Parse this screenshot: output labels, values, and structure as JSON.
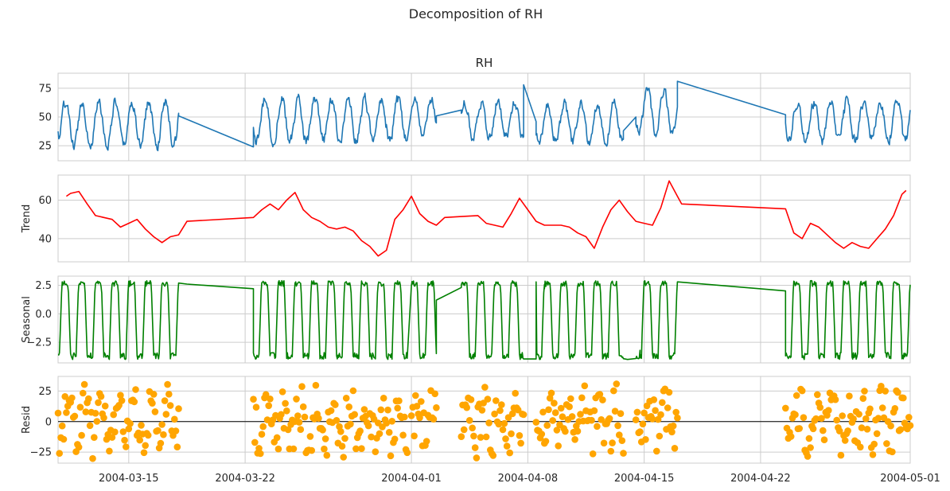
{
  "chart_data": {
    "type": "line",
    "title": "Decomposition of RH",
    "x_axis": {
      "type": "date",
      "range": [
        "2004-03-10T18:00",
        "2004-05-01T00:00"
      ],
      "ticks": [
        "2004-03-15",
        "2004-03-22",
        "2004-04-01",
        "2004-04-08",
        "2004-04-15",
        "2004-04-22",
        "2004-05-01"
      ],
      "grid": true
    },
    "gap": [
      "2004-03-18T12:00",
      "2004-03-22T00:00"
    ],
    "panels": [
      {
        "id": "observed",
        "title": "RH",
        "ylabel": "",
        "color": "#1f77b4",
        "plot": "line",
        "ylim": [
          12,
          88
        ],
        "yticks": [
          25,
          50,
          75
        ],
        "ytick_labels": [
          "25",
          "50",
          "75"
        ],
        "segments": [
          {
            "start": "2004-03-10T18:00",
            "end": "2004-03-18T00:00",
            "baseline": 44,
            "amplitude": 20,
            "noise": 7,
            "start_value": 48
          },
          {
            "start": "2004-03-22T12:00",
            "end": "2004-03-31T18:00",
            "baseline": 47,
            "amplitude": 19,
            "noise": 8,
            "start_value": 45
          },
          {
            "start": "2004-04-01T00:00",
            "end": "2004-04-02T12:00",
            "baseline": 50,
            "amplitude": 16,
            "noise": 6,
            "start_value": 52
          },
          {
            "start": "2004-04-04T00:00",
            "end": "2004-04-07T18:00",
            "baseline": 48,
            "amplitude": 16,
            "noise": 7,
            "start_value": 55
          },
          {
            "start": "2004-04-08T12:00",
            "end": "2004-04-13T18:00",
            "baseline": 45,
            "amplitude": 18,
            "noise": 7,
            "start_value": 40
          },
          {
            "start": "2004-04-14T12:00",
            "end": "2004-04-17T00:00",
            "baseline": 55,
            "amplitude": 20,
            "noise": 7,
            "start_value": 38
          },
          {
            "start": "2004-04-23T12:00",
            "end": "2004-05-01T00:00",
            "baseline": 46,
            "amplitude": 18,
            "noise": 8,
            "start_value": 52
          }
        ],
        "bridges": [
          {
            "from": "2004-03-18T00:00",
            "to": "2004-03-22T12:00",
            "from_value": 51,
            "to_value": 24
          },
          {
            "from": "2004-04-02T12:00",
            "to": "2004-04-04T00:00",
            "from_value": 51,
            "to_value": 56
          },
          {
            "from": "2004-04-07T18:00",
            "to": "2004-04-08T12:00",
            "from_value": 78,
            "to_value": 46
          },
          {
            "from": "2004-04-13T18:00",
            "to": "2004-04-14T12:00",
            "from_value": 38,
            "to_value": 50
          },
          {
            "from": "2004-04-17T00:00",
            "to": "2004-04-23T12:00",
            "from_value": 81,
            "to_value": 52
          }
        ]
      },
      {
        "id": "trend",
        "title": "",
        "ylabel": "Trend",
        "color": "#ff0000",
        "plot": "line",
        "ylim": [
          28,
          73
        ],
        "yticks": [
          40,
          60
        ],
        "ytick_labels": [
          "40",
          "60"
        ],
        "points": [
          [
            "2004-03-11T06:00",
            62
          ],
          [
            "2004-03-11T12:00",
            63.5
          ],
          [
            "2004-03-12T00:00",
            64.5
          ],
          [
            "2004-03-12T12:00",
            58
          ],
          [
            "2004-03-13T00:00",
            52
          ],
          [
            "2004-03-13T12:00",
            51
          ],
          [
            "2004-03-14T00:00",
            50
          ],
          [
            "2004-03-14T12:00",
            46
          ],
          [
            "2004-03-15T00:00",
            48
          ],
          [
            "2004-03-15T12:00",
            50
          ],
          [
            "2004-03-16T00:00",
            45
          ],
          [
            "2004-03-16T12:00",
            41
          ],
          [
            "2004-03-17T00:00",
            38
          ],
          [
            "2004-03-17T12:00",
            41
          ],
          [
            "2004-03-18T00:00",
            42
          ],
          [
            "2004-03-18T12:00",
            49
          ],
          [
            "2004-03-22T12:00",
            51
          ],
          [
            "2004-03-23T00:00",
            55
          ],
          [
            "2004-03-23T12:00",
            58
          ],
          [
            "2004-03-24T00:00",
            55
          ],
          [
            "2004-03-24T12:00",
            60
          ],
          [
            "2004-03-25T00:00",
            64
          ],
          [
            "2004-03-25T12:00",
            55
          ],
          [
            "2004-03-26T00:00",
            51
          ],
          [
            "2004-03-26T12:00",
            49
          ],
          [
            "2004-03-27T00:00",
            46
          ],
          [
            "2004-03-27T12:00",
            45
          ],
          [
            "2004-03-28T00:00",
            46
          ],
          [
            "2004-03-28T12:00",
            44
          ],
          [
            "2004-03-29T00:00",
            39
          ],
          [
            "2004-03-29T12:00",
            36
          ],
          [
            "2004-03-30T00:00",
            31
          ],
          [
            "2004-03-30T12:00",
            34
          ],
          [
            "2004-03-31T00:00",
            50
          ],
          [
            "2004-03-31T12:00",
            55
          ],
          [
            "2004-04-01T00:00",
            62
          ],
          [
            "2004-04-01T12:00",
            53
          ],
          [
            "2004-04-02T00:00",
            49
          ],
          [
            "2004-04-02T12:00",
            47
          ],
          [
            "2004-04-03T00:00",
            51
          ],
          [
            "2004-04-04T00:00",
            51.5
          ],
          [
            "2004-04-05T00:00",
            52
          ],
          [
            "2004-04-05T12:00",
            48
          ],
          [
            "2004-04-06T00:00",
            47
          ],
          [
            "2004-04-06T12:00",
            46
          ],
          [
            "2004-04-07T00:00",
            53
          ],
          [
            "2004-04-07T12:00",
            61
          ],
          [
            "2004-04-08T00:00",
            55
          ],
          [
            "2004-04-08T12:00",
            49
          ],
          [
            "2004-04-09T00:00",
            47
          ],
          [
            "2004-04-10T00:00",
            47
          ],
          [
            "2004-04-10T12:00",
            46
          ],
          [
            "2004-04-11T00:00",
            43
          ],
          [
            "2004-04-11T12:00",
            41
          ],
          [
            "2004-04-12T00:00",
            35
          ],
          [
            "2004-04-12T12:00",
            46
          ],
          [
            "2004-04-13T00:00",
            55
          ],
          [
            "2004-04-13T12:00",
            60
          ],
          [
            "2004-04-14T00:00",
            54
          ],
          [
            "2004-04-14T12:00",
            49
          ],
          [
            "2004-04-15T00:00",
            48
          ],
          [
            "2004-04-15T12:00",
            47
          ],
          [
            "2004-04-16T00:00",
            56
          ],
          [
            "2004-04-16T12:00",
            70
          ],
          [
            "2004-04-17T00:00",
            62
          ],
          [
            "2004-04-17T06:00",
            58
          ],
          [
            "2004-04-23T12:00",
            55.5
          ],
          [
            "2004-04-24T00:00",
            43
          ],
          [
            "2004-04-24T12:00",
            40
          ],
          [
            "2004-04-25T00:00",
            48
          ],
          [
            "2004-04-25T12:00",
            46
          ],
          [
            "2004-04-26T00:00",
            42
          ],
          [
            "2004-04-26T12:00",
            38
          ],
          [
            "2004-04-27T00:00",
            35
          ],
          [
            "2004-04-27T12:00",
            38
          ],
          [
            "2004-04-28T00:00",
            36
          ],
          [
            "2004-04-28T12:00",
            35
          ],
          [
            "2004-04-29T00:00",
            40
          ],
          [
            "2004-04-29T12:00",
            45
          ],
          [
            "2004-04-30T00:00",
            52
          ],
          [
            "2004-04-30T12:00",
            63
          ],
          [
            "2004-04-30T18:00",
            65
          ]
        ]
      },
      {
        "id": "seasonal",
        "title": "",
        "ylabel": "Seasonal",
        "color": "#008000",
        "plot": "line",
        "ylim": [
          -4.3,
          3.3
        ],
        "yticks": [
          -2.5,
          0,
          2.5
        ],
        "ytick_labels": [
          "−2.5",
          "0.0",
          "2.5"
        ],
        "period_hours": 24,
        "amplitude": 2.8,
        "min_value": -4.0,
        "max_value": 2.9,
        "bridges": [
          {
            "from": "2004-03-18T12:00",
            "to": "2004-03-22T12:00",
            "from_value": 2.6,
            "to_value": 2.2
          },
          {
            "from": "2004-04-02T12:00",
            "to": "2004-04-04T00:00",
            "from_value": 1.2,
            "to_value": 2.3
          },
          {
            "from": "2004-04-08T12:00",
            "to": "2004-04-09T00:00",
            "from_value": 2.8,
            "to_value": 2.2
          },
          {
            "from": "2004-04-14T00:00",
            "to": "2004-04-14T18:00",
            "from_value": -4.0,
            "to_value": -3.2
          },
          {
            "from": "2004-04-17T00:00",
            "to": "2004-04-23T12:00",
            "from_value": 2.8,
            "to_value": 2.0
          }
        ]
      },
      {
        "id": "resid",
        "title": "",
        "ylabel": "Resid",
        "color": "#ffa500",
        "plot": "scatter",
        "ylim": [
          -34,
          37
        ],
        "yticks": [
          -25,
          0,
          25
        ],
        "ytick_labels": [
          "−25",
          "0",
          "25"
        ],
        "zero_line": true,
        "spread": 28
      }
    ]
  }
}
